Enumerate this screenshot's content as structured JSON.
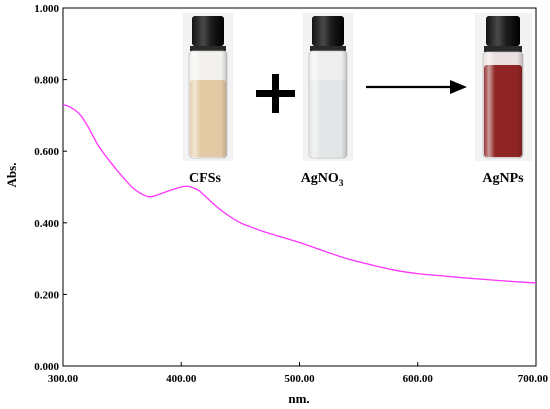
{
  "chart_data": {
    "type": "line",
    "xlabel": "nm.",
    "ylabel": "Abs.",
    "xlim": [
      300,
      700
    ],
    "ylim": [
      0,
      1
    ],
    "x_ticks": [
      "300.00",
      "400.00",
      "500.00",
      "600.00",
      "700.00"
    ],
    "y_ticks": [
      "0.000",
      "0.200",
      "0.400",
      "0.600",
      "0.800",
      "1.000"
    ],
    "grid": false,
    "series": [
      {
        "color": "#ff33ff",
        "x": [
          300,
          305,
          310,
          315,
          320,
          325,
          330,
          340,
          350,
          360,
          370,
          375,
          380,
          390,
          400,
          405,
          410,
          415,
          420,
          430,
          440,
          450,
          460,
          470,
          480,
          490,
          500,
          520,
          540,
          560,
          580,
          600,
          620,
          640,
          660,
          680,
          700
        ],
        "values": [
          0.73,
          0.725,
          0.715,
          0.7,
          0.675,
          0.645,
          0.615,
          0.57,
          0.53,
          0.495,
          0.475,
          0.473,
          0.478,
          0.49,
          0.5,
          0.502,
          0.498,
          0.49,
          0.475,
          0.445,
          0.42,
          0.4,
          0.387,
          0.375,
          0.365,
          0.355,
          0.345,
          0.322,
          0.3,
          0.283,
          0.268,
          0.258,
          0.252,
          0.246,
          0.241,
          0.236,
          0.232
        ]
      }
    ]
  },
  "inset": {
    "vials": [
      {
        "label": "CFSs",
        "liquid": "#e2c9a3",
        "liquid_shade": "#cdb08a"
      },
      {
        "label": "AgNO",
        "subscript": "3",
        "liquid": "#e3e6e7",
        "liquid_shade": "#c9cdcf"
      },
      {
        "label": "AgNPs",
        "liquid": "#8f2424",
        "liquid_shade": "#6d1616"
      }
    ],
    "operator": "+",
    "arrow": "right"
  }
}
